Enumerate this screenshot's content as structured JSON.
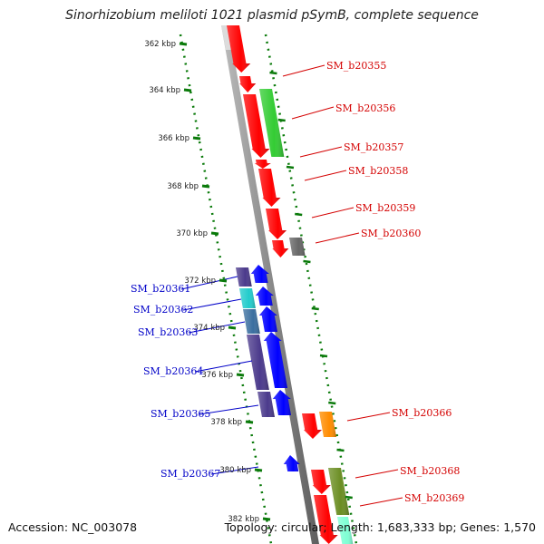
{
  "header": {
    "title": "Sinorhizobium meliloti 1021 plasmid pSymB, complete sequence"
  },
  "footer": {
    "accession": "Accession: NC_003078",
    "summary": "Topology: circular; Length: 1,683,333 bp; Genes: 1,570"
  },
  "ticks": [
    "362 kbp",
    "364 kbp",
    "366 kbp",
    "368 kbp",
    "370 kbp",
    "372 kbp",
    "374 kbp",
    "376 kbp",
    "378 kbp",
    "380 kbp",
    "382 kbp"
  ],
  "genes_right": [
    "SM_b20355",
    "SM_b20356",
    "SM_b20357",
    "SM_b20358",
    "SM_b20359",
    "SM_b20360",
    "SM_b20366",
    "SM_b20368",
    "SM_b20369"
  ],
  "genes_left": [
    "SM_b20361",
    "SM_b20362",
    "SM_b20363",
    "SM_b20364",
    "SM_b20365",
    "SM_b20367"
  ],
  "colors": {
    "forward_strand": "#ff0000",
    "reverse_strand": "#0000ff",
    "backbone": "#8a8a8a",
    "tick_dots": "#0a7a0a",
    "right_label": "#d40000",
    "left_label": "#0000c8",
    "green_feature": "#33cc33",
    "orange_feature": "#ff8c00",
    "olive_feature": "#6b8e23",
    "purple_feature": "#4b3a8c",
    "cyan_feature": "#22cccc",
    "gray_feature": "#666666"
  }
}
